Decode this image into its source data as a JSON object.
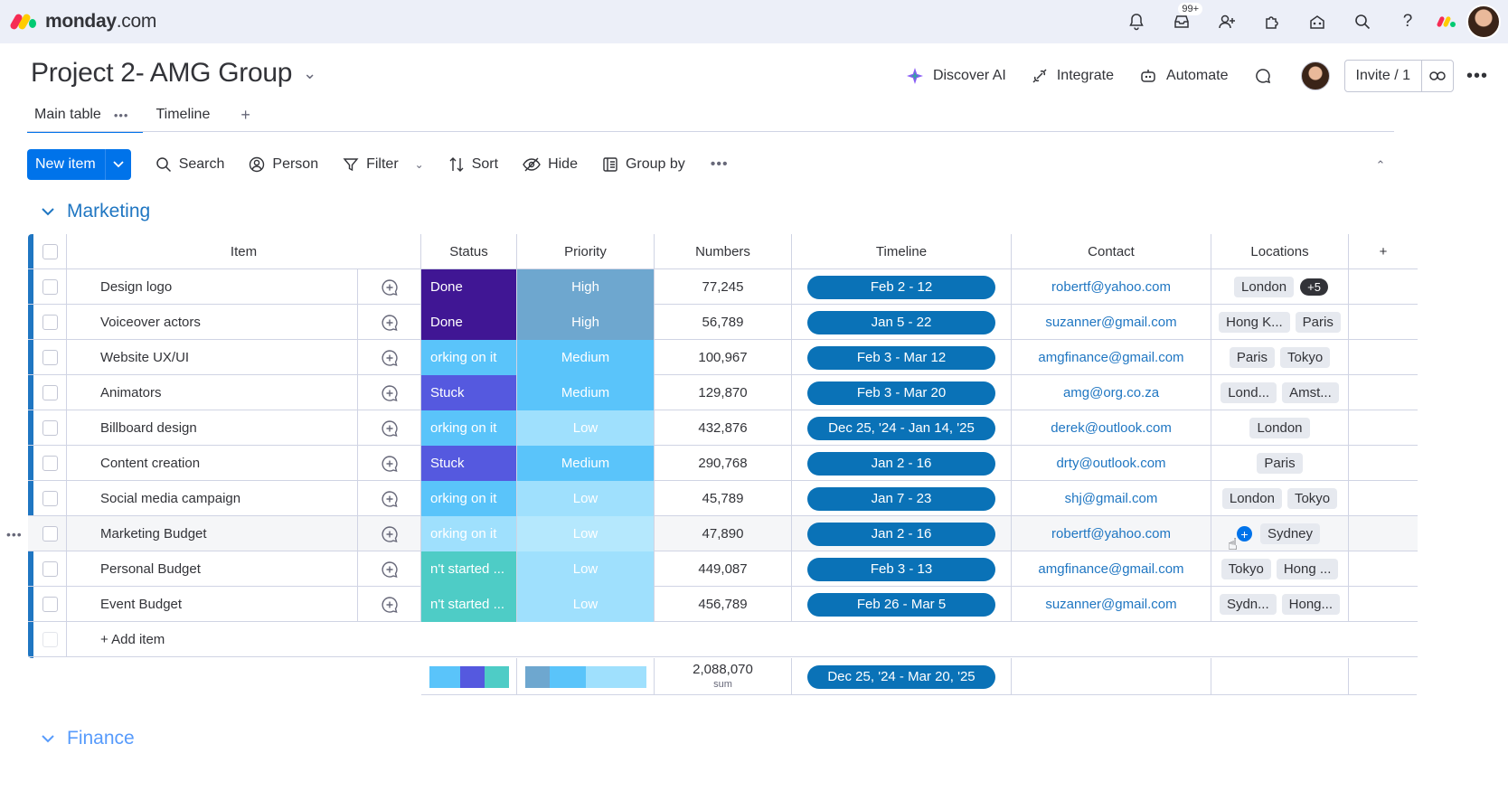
{
  "app": {
    "brand": "monday",
    "brand_suffix": ".com",
    "inbox_badge": "99+"
  },
  "board": {
    "title": "Project 2- AMG Group"
  },
  "header_actions": {
    "discover_ai": "Discover AI",
    "integrate": "Integrate",
    "automate": "Automate",
    "invite": "Invite / 1"
  },
  "tabs": [
    {
      "label": "Main table"
    },
    {
      "label": "Timeline"
    }
  ],
  "toolbar": {
    "new_item": "New item",
    "search": "Search",
    "person": "Person",
    "filter": "Filter",
    "sort": "Sort",
    "hide": "Hide",
    "group_by": "Group by"
  },
  "colors": {
    "accent": "#0073ea",
    "group_marketing": "#1f76c2",
    "group_finance": "#579bfc",
    "done": "#401694",
    "stuck": "#5559df",
    "working": "#4eccc6",
    "not_started": "#4eccc6",
    "high": "#6ea7cf",
    "medium": "#5ac4fa",
    "low": "#9fe0fd",
    "timeline": "#0a72b7"
  },
  "groups": [
    {
      "name": "Marketing",
      "columns": [
        "Item",
        "Status",
        "Priority",
        "Numbers",
        "Timeline",
        "Contact",
        "Locations"
      ],
      "rows": [
        {
          "item": "Design logo",
          "status": "Done",
          "status_color": "#401694",
          "priority": "High",
          "priority_color": "#6ea7cf",
          "numbers": "77,245",
          "timeline": "Feb 2 - 12",
          "contact": "robertf@yahoo.com",
          "locations": [
            "London"
          ],
          "locations_more": "+5"
        },
        {
          "item": "Voiceover actors",
          "status": "Done",
          "status_color": "#401694",
          "priority": "High",
          "priority_color": "#6ea7cf",
          "numbers": "56,789",
          "timeline": "Jan 5 - 22",
          "contact": "suzanner@gmail.com",
          "locations": [
            "Hong K...",
            "Paris"
          ]
        },
        {
          "item": "Website UX/UI",
          "status": "orking on it",
          "status_color": "#5ac4fa",
          "priority": "Medium",
          "priority_color": "#5ac4fa",
          "numbers": "100,967",
          "timeline": "Feb 3 - Mar 12",
          "contact": "amgfinance@gmail.com",
          "locations": [
            "Paris",
            "Tokyo"
          ]
        },
        {
          "item": "Animators",
          "status": "Stuck",
          "status_color": "#5559df",
          "priority": "Medium",
          "priority_color": "#5ac4fa",
          "numbers": "129,870",
          "timeline": "Feb 3 - Mar 20",
          "contact": "amg@org.co.za",
          "locations": [
            "Lond...",
            "Amst..."
          ]
        },
        {
          "item": "Billboard design",
          "status": "orking on it",
          "status_color": "#5ac4fa",
          "priority": "Low",
          "priority_color": "#9fe0fd",
          "numbers": "432,876",
          "timeline": "Dec 25, '24 - Jan 14, '25",
          "contact": "derek@outlook.com",
          "locations": [
            "London"
          ]
        },
        {
          "item": "Content creation",
          "status": "Stuck",
          "status_color": "#5559df",
          "priority": "Medium",
          "priority_color": "#5ac4fa",
          "numbers": "290,768",
          "timeline": "Jan 2 - 16",
          "contact": "drty@outlook.com",
          "locations": [
            "Paris"
          ]
        },
        {
          "item": "Social media campaign",
          "status": "orking on it",
          "status_color": "#5ac4fa",
          "priority": "Low",
          "priority_color": "#9fe0fd",
          "numbers": "45,789",
          "timeline": "Jan 7 - 23",
          "contact": "shj@gmail.com",
          "locations": [
            "London",
            "Tokyo"
          ]
        },
        {
          "item": "Marketing Budget",
          "status": "orking on it",
          "status_color": "#9fe0fd",
          "priority": "Low",
          "priority_color": "#b5e8fd",
          "numbers": "47,890",
          "timeline": "Jan 2 - 16",
          "contact": "robertf@yahoo.com",
          "locations": [
            "Sydney"
          ],
          "hover": true
        },
        {
          "item": "Personal Budget",
          "status": "n't started ...",
          "status_color": "#4eccc6",
          "priority": "Low",
          "priority_color": "#9fe0fd",
          "numbers": "449,087",
          "timeline": "Feb 3 - 13",
          "contact": "amgfinance@gmail.com",
          "locations": [
            "Tokyo",
            "Hong ..."
          ]
        },
        {
          "item": "Event Budget",
          "status": "n't started ...",
          "status_color": "#4eccc6",
          "priority": "Low",
          "priority_color": "#9fe0fd",
          "numbers": "456,789",
          "timeline": "Feb 26 - Mar 5",
          "contact": "suzanner@gmail.com",
          "locations": [
            "Sydn...",
            "Hong..."
          ]
        }
      ],
      "add_item": "+ Add item",
      "summary": {
        "numbers_sum": "2,088,070",
        "numbers_label": "sum",
        "timeline": "Dec 25, '24 - Mar 20, '25"
      }
    },
    {
      "name": "Finance"
    }
  ]
}
